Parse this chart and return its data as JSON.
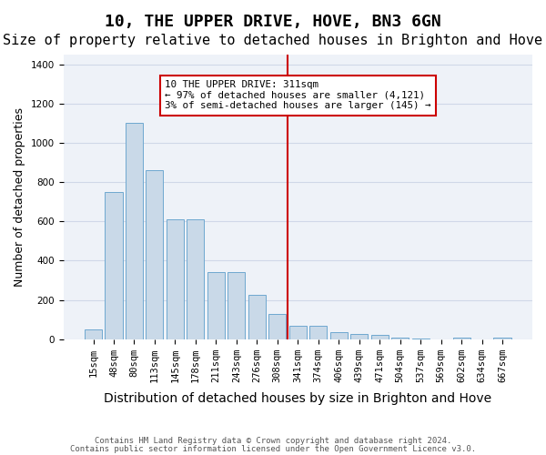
{
  "title": "10, THE UPPER DRIVE, HOVE, BN3 6GN",
  "subtitle": "Size of property relative to detached houses in Brighton and Hove",
  "xlabel": "Distribution of detached houses by size in Brighton and Hove",
  "ylabel": "Number of detached properties",
  "footer1": "Contains HM Land Registry data © Crown copyright and database right 2024.",
  "footer2": "Contains public sector information licensed under the Open Government Licence v3.0.",
  "bar_labels": [
    "15sqm",
    "48sqm",
    "80sqm",
    "113sqm",
    "145sqm",
    "178sqm",
    "211sqm",
    "243sqm",
    "276sqm",
    "308sqm",
    "341sqm",
    "374sqm",
    "406sqm",
    "439sqm",
    "471sqm",
    "504sqm",
    "537sqm",
    "569sqm",
    "602sqm",
    "634sqm",
    "667sqm"
  ],
  "bar_values": [
    50,
    750,
    1100,
    860,
    610,
    610,
    340,
    340,
    225,
    130,
    70,
    70,
    35,
    25,
    20,
    10,
    5,
    0,
    10,
    0,
    10
  ],
  "bar_color": "#c9d9e8",
  "bar_edge_color": "#6ea8d0",
  "vline_x_index": 9.5,
  "vline_color": "#cc0000",
  "annotation_text": "10 THE UPPER DRIVE: 311sqm\n← 97% of detached houses are smaller (4,121)\n3% of semi-detached houses are larger (145) →",
  "annotation_box_color": "#cc0000",
  "annotation_text_color": "#000000",
  "ylim": [
    0,
    1450
  ],
  "yticks": [
    0,
    200,
    400,
    600,
    800,
    1000,
    1200,
    1400
  ],
  "grid_color": "#d0d8e8",
  "bg_color": "#eef2f8",
  "title_fontsize": 13,
  "subtitle_fontsize": 11,
  "xlabel_fontsize": 10,
  "ylabel_fontsize": 9,
  "tick_fontsize": 7.5
}
